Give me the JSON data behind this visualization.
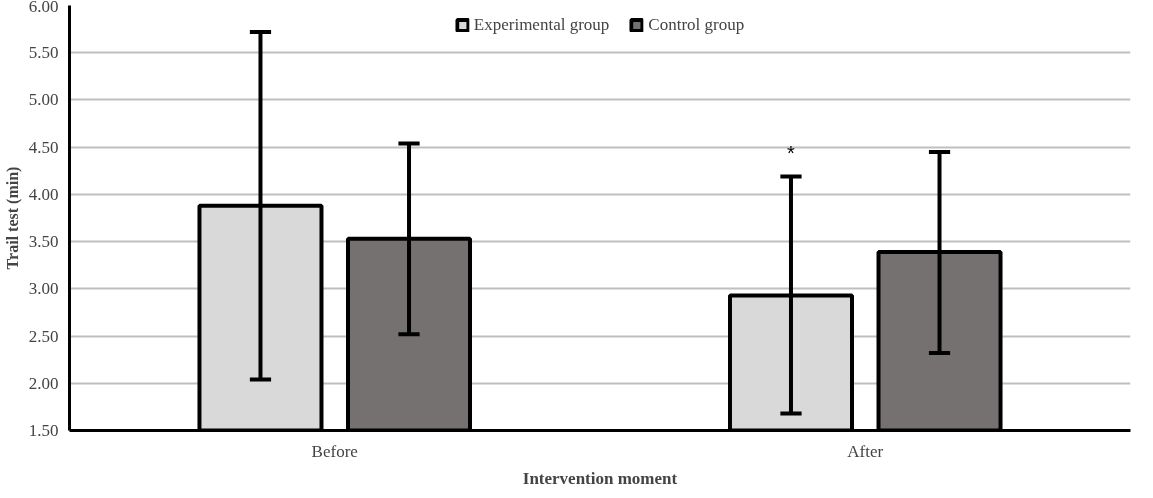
{
  "chart_data": {
    "type": "bar",
    "xlabel": "Intervention moment",
    "ylabel": "Trail test (min)",
    "categories": [
      "Before",
      "After"
    ],
    "series": [
      {
        "name": "Experimental group",
        "color": "#d9d9d9",
        "values": [
          3.88,
          2.93
        ],
        "errors": [
          [
            2.04,
            5.72
          ],
          [
            1.68,
            4.19
          ]
        ]
      },
      {
        "name": "Control group",
        "color": "#767171",
        "values": [
          3.53,
          3.39
        ],
        "errors": [
          [
            2.52,
            4.54
          ],
          [
            2.32,
            4.45
          ]
        ]
      }
    ],
    "ylim": [
      1.5,
      6.0
    ],
    "yticks": [
      {
        "value": 1.5,
        "label": "1.50"
      },
      {
        "value": 2.0,
        "label": "2.00"
      },
      {
        "value": 2.5,
        "label": "2.50"
      },
      {
        "value": 3.0,
        "label": "3.00"
      },
      {
        "value": 3.5,
        "label": "3.50"
      },
      {
        "value": 4.0,
        "label": "4.00"
      },
      {
        "value": 4.5,
        "label": "4.50"
      },
      {
        "value": 5.0,
        "label": "5.00"
      },
      {
        "value": 5.5,
        "label": "5.50"
      },
      {
        "value": 6.0,
        "label": "6.00"
      }
    ],
    "annotations": [
      "*"
    ],
    "grid": "y",
    "legend": "top"
  }
}
